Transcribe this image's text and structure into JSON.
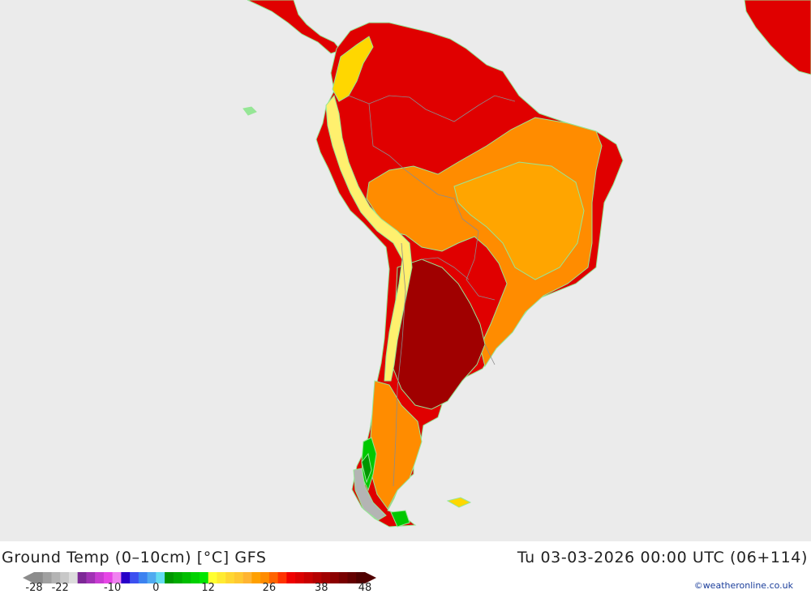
{
  "map": {
    "colors": {
      "ocean": "#ebebeb",
      "hot_dark": "#a00000",
      "hot": "#e00000",
      "red_orange": "#ff3c00",
      "orange": "#ff8c00",
      "light_orange": "#ffa500",
      "yellow": "#ffd700",
      "pale_yellow": "#fff06e",
      "green": "#00c800",
      "dark_green": "#009600",
      "grey": "#b4b4b4",
      "coast": "#96e696",
      "border": "#8c8c8c"
    }
  },
  "header": {
    "title": "Ground Temp (0–10cm) [°C] GFS",
    "datetime": "Tu 03-03-2026 00:00 UTC (06+114)"
  },
  "legend": {
    "colors": [
      "#8c8c8c",
      "#a0a0a0",
      "#b4b4b4",
      "#c8c8c8",
      "#dcdcdc",
      "#7d2896",
      "#a032b4",
      "#c83cd2",
      "#e646e6",
      "#f082f0",
      "#2800c8",
      "#3c50f0",
      "#3c82f0",
      "#50aaf0",
      "#64dcf0",
      "#009600",
      "#00aa00",
      "#00be00",
      "#00d200",
      "#00e600",
      "#ffff32",
      "#ffeb32",
      "#ffd732",
      "#ffc832",
      "#ffb432",
      "#ffa000",
      "#ff8c00",
      "#ff6400",
      "#ff3200",
      "#f00000",
      "#dc0000",
      "#c80000",
      "#b40000",
      "#a00000",
      "#8c0000",
      "#780000",
      "#640000",
      "#500000"
    ],
    "labels": [
      "-28",
      "-22",
      "-10",
      "0",
      "12",
      "26",
      "38",
      "48"
    ],
    "label_values": [
      -28,
      -22,
      -10,
      0,
      12,
      26,
      38,
      48
    ],
    "min": -28,
    "max": 48
  },
  "credit": {
    "text": "©weatheronline.co.uk"
  }
}
